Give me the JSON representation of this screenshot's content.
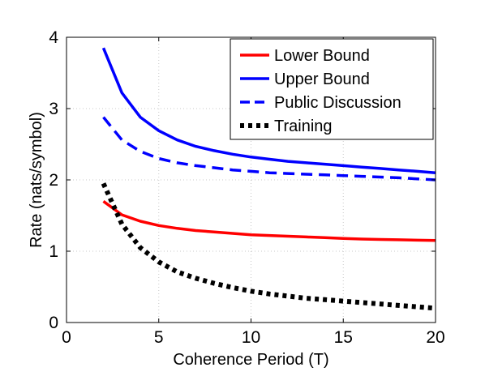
{
  "chart_data": {
    "type": "line",
    "xlabel": "Coherence Period (T)",
    "ylabel": "Rate (nats/symbol)",
    "xlim": [
      0,
      20
    ],
    "ylim": [
      0,
      4
    ],
    "xticks": [
      0,
      5,
      10,
      15,
      20
    ],
    "yticks": [
      0,
      1,
      2,
      3,
      4
    ],
    "grid": true,
    "legend_position": "top-right",
    "x": [
      2,
      3,
      4,
      5,
      6,
      7,
      8,
      9,
      10,
      11,
      12,
      13,
      14,
      15,
      16,
      17,
      18,
      19,
      20
    ],
    "series": [
      {
        "name": "Lower Bound",
        "color": "#ff0000",
        "style": "solid",
        "values": [
          1.7,
          1.51,
          1.42,
          1.36,
          1.32,
          1.29,
          1.27,
          1.25,
          1.23,
          1.22,
          1.21,
          1.2,
          1.19,
          1.18,
          1.17,
          1.165,
          1.16,
          1.155,
          1.15
        ]
      },
      {
        "name": "Upper Bound",
        "color": "#0000ff",
        "style": "solid",
        "values": [
          3.85,
          3.22,
          2.88,
          2.69,
          2.56,
          2.47,
          2.41,
          2.36,
          2.32,
          2.29,
          2.26,
          2.24,
          2.22,
          2.2,
          2.18,
          2.16,
          2.14,
          2.12,
          2.1
        ]
      },
      {
        "name": "Public Discussion",
        "color": "#0000ff",
        "style": "dashed",
        "values": [
          2.88,
          2.56,
          2.4,
          2.3,
          2.24,
          2.2,
          2.17,
          2.14,
          2.12,
          2.1,
          2.09,
          2.08,
          2.07,
          2.06,
          2.05,
          2.04,
          2.03,
          2.015,
          2.0
        ]
      },
      {
        "name": "Training",
        "color": "#000000",
        "style": "dotted",
        "values": [
          1.95,
          1.38,
          1.05,
          0.85,
          0.71,
          0.62,
          0.55,
          0.49,
          0.44,
          0.4,
          0.37,
          0.34,
          0.32,
          0.3,
          0.28,
          0.26,
          0.24,
          0.22,
          0.2
        ]
      }
    ]
  }
}
